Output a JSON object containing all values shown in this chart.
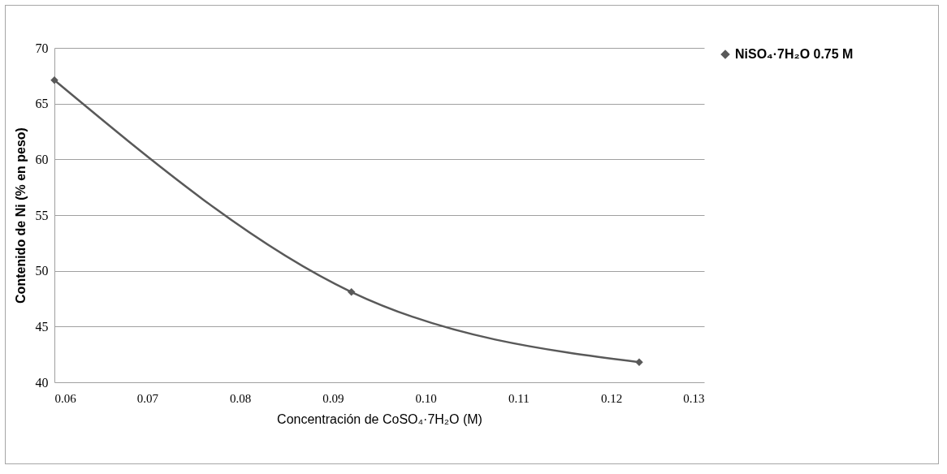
{
  "chart_data": {
    "type": "line",
    "xlabel": "Concentración de CoSO₄·7H₂O (M)",
    "ylabel": "Contenido de Ni (% en peso)",
    "x": [
      0.06,
      0.092,
      0.123
    ],
    "series": [
      {
        "name": "NiSO₄·7H₂O 0.75 M",
        "color": "#595959",
        "values": [
          67.1,
          48.1,
          41.8
        ]
      }
    ],
    "xlim": [
      0.06,
      0.13
    ],
    "xticks": [
      {
        "value": 0.06,
        "label": "0.06"
      },
      {
        "value": 0.07,
        "label": "0.07"
      },
      {
        "value": 0.08,
        "label": "0.08"
      },
      {
        "value": 0.09,
        "label": "0.09"
      },
      {
        "value": 0.1,
        "label": "0.10"
      },
      {
        "value": 0.11,
        "label": "0.11"
      },
      {
        "value": 0.12,
        "label": "0.12"
      },
      {
        "value": 0.13,
        "label": "0.13"
      }
    ],
    "ylim": [
      40,
      70
    ],
    "yticks": [
      40,
      45,
      50,
      55,
      60,
      65,
      70
    ],
    "grid": "y",
    "legend": "right",
    "marker": "diamond",
    "line_style": "solid"
  }
}
